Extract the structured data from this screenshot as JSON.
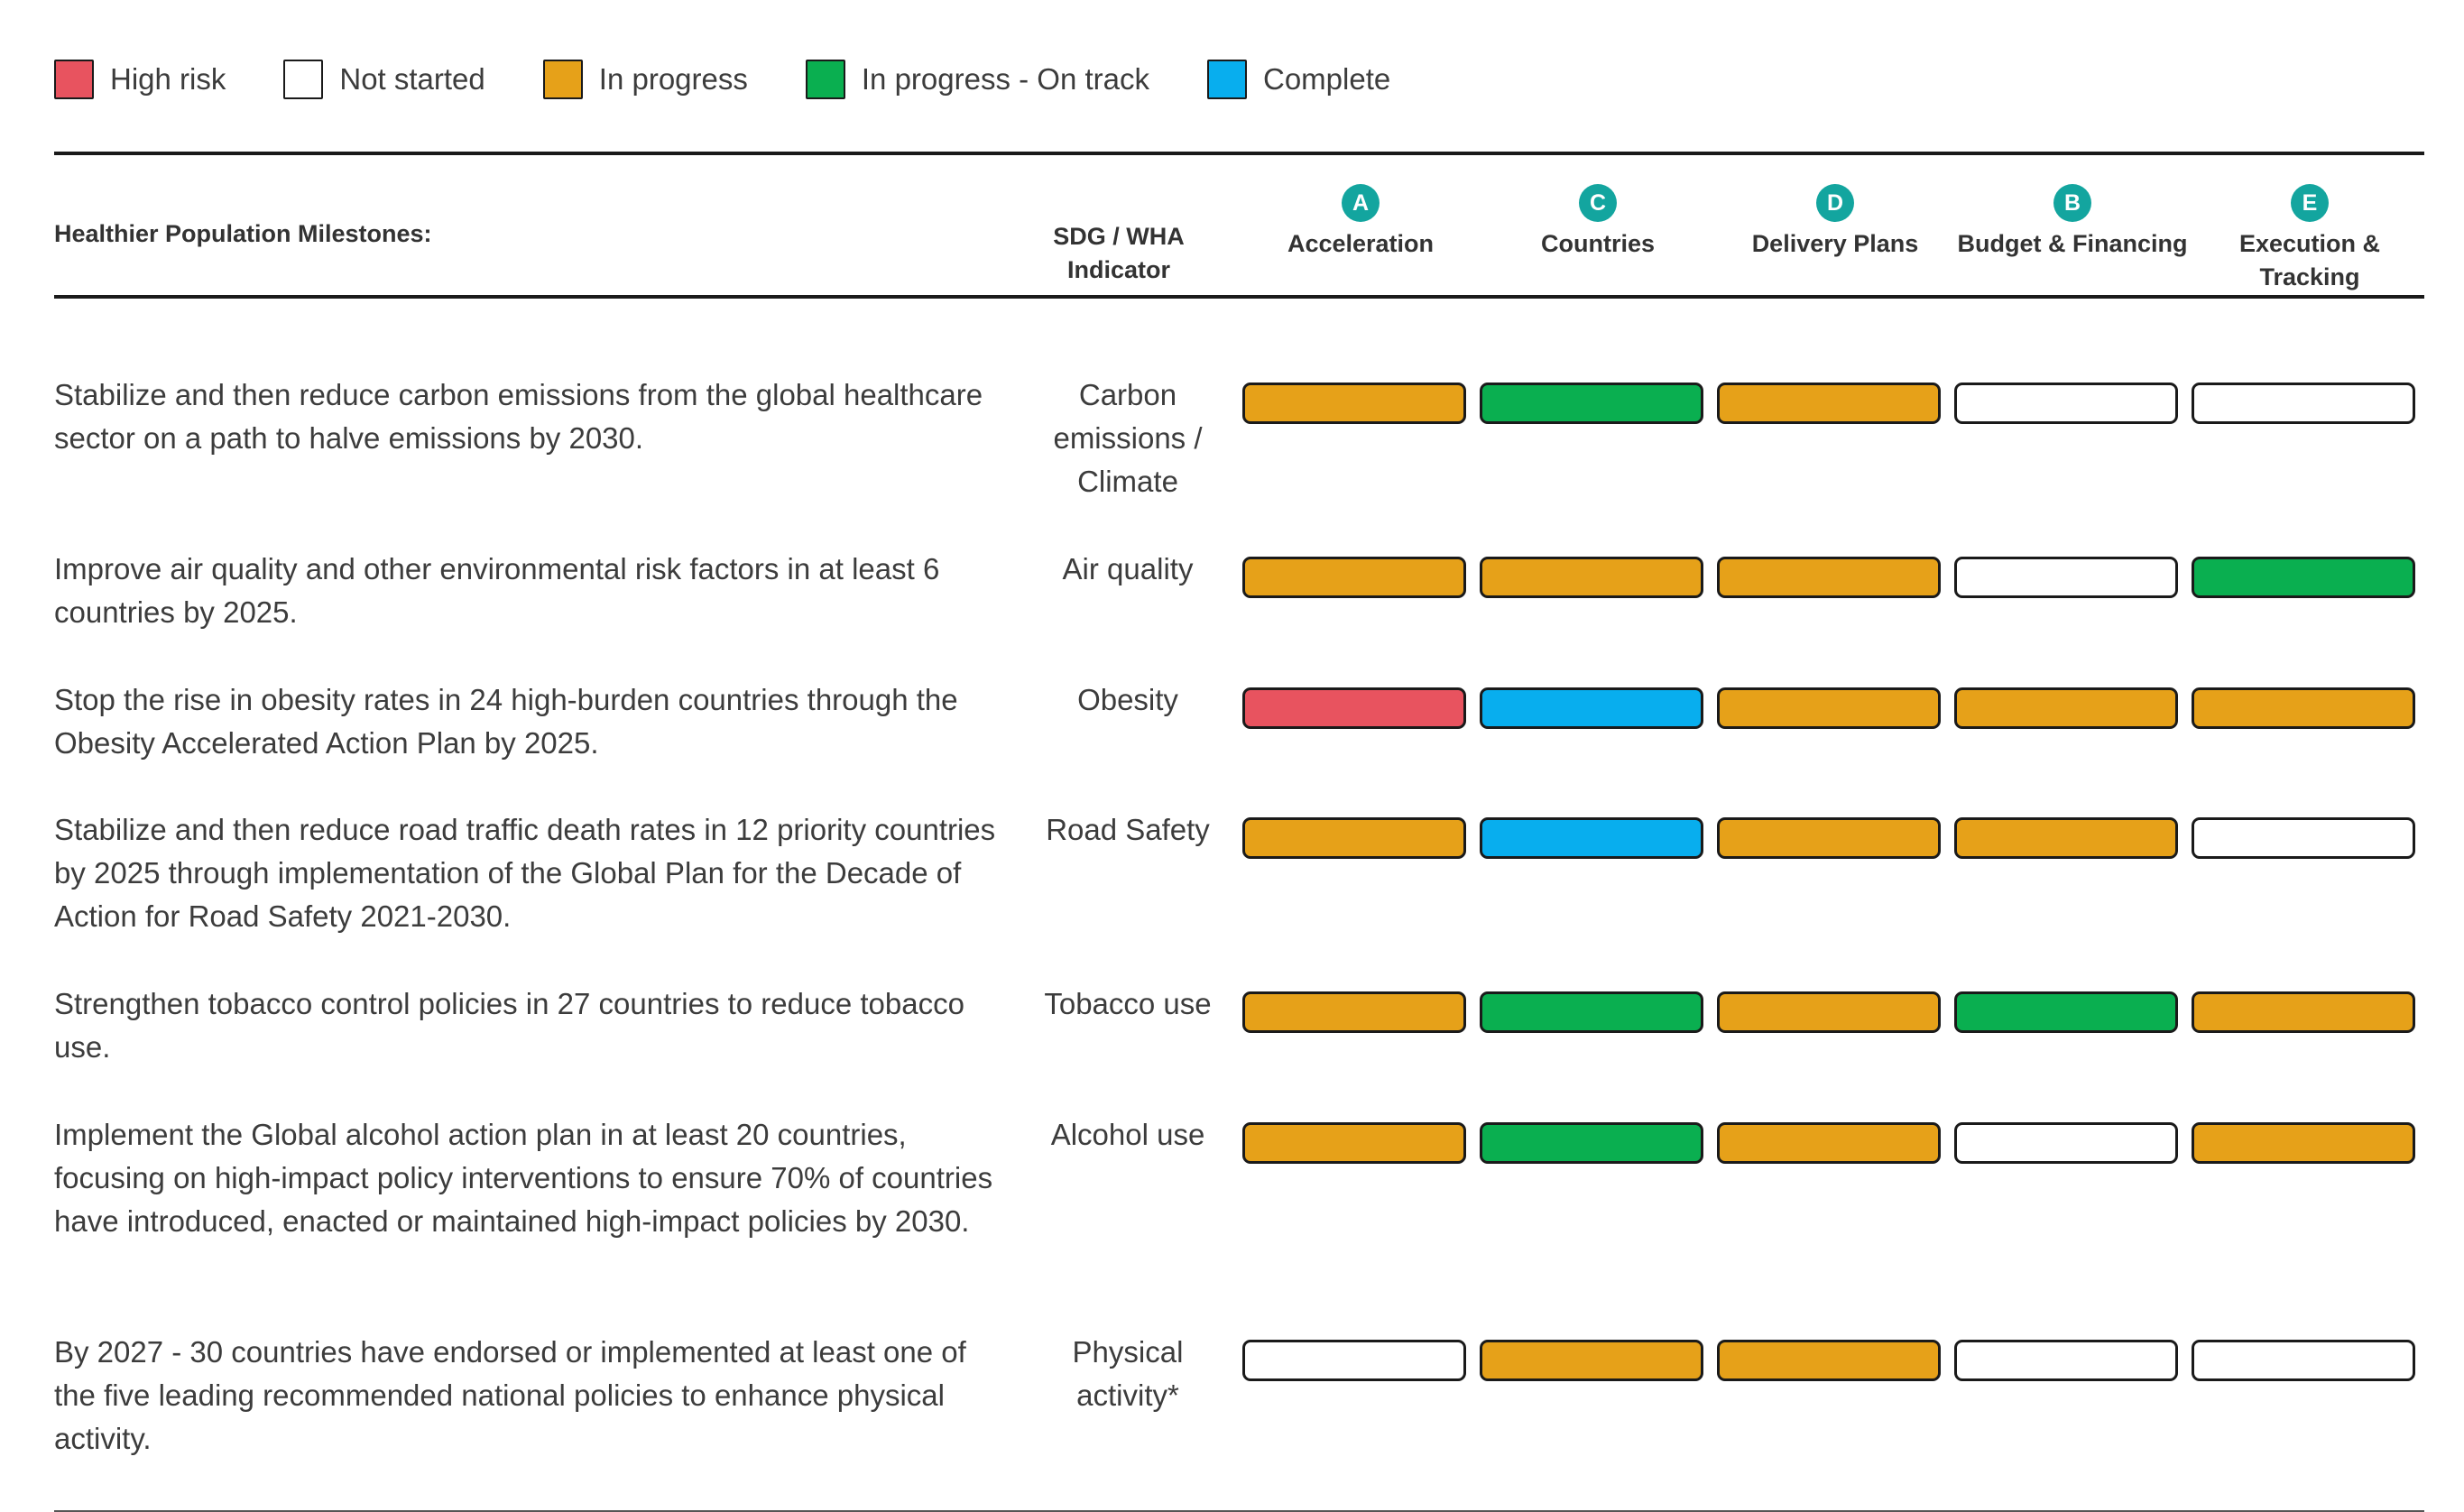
{
  "legend": [
    {
      "label": "High risk",
      "color": "#e8535f"
    },
    {
      "label": "Not started",
      "color": "#ffffff"
    },
    {
      "label": "In progress",
      "color": "#e6a119"
    },
    {
      "label": "In progress - On track",
      "color": "#0aaf50"
    },
    {
      "label": "Complete",
      "color": "#08aeee"
    }
  ],
  "header": {
    "milestones": "Healthier Population Milestones:",
    "indicator_line1": "SDG / WHA",
    "indicator_line2": "Indicator",
    "columns": [
      {
        "badge": "A",
        "label": "Acceleration",
        "label2": ""
      },
      {
        "badge": "C",
        "label": "Countries",
        "label2": ""
      },
      {
        "badge": "D",
        "label": "Delivery Plans",
        "label2": ""
      },
      {
        "badge": "B",
        "label": "Budget & Financing",
        "label2": ""
      },
      {
        "badge": "E",
        "label": "Execution &",
        "label2": "Tracking"
      }
    ]
  },
  "rows": [
    {
      "milestone": "Stabilize and then reduce carbon emissions from the global healthcare sector on a path to halve emissions by 2030.",
      "indicator": "Carbon emissions / Climate",
      "statuses": [
        "in_progress",
        "on_track",
        "in_progress",
        "not_started",
        "not_started"
      ]
    },
    {
      "milestone": "Improve air quality and other environmental risk factors in at least 6 countries by 2025.",
      "indicator": "Air quality",
      "statuses": [
        "in_progress",
        "in_progress",
        "in_progress",
        "not_started",
        "on_track"
      ]
    },
    {
      "milestone": "Stop the rise in obesity rates in 24 high-burden countries through the Obesity Accelerated Action Plan by 2025.",
      "indicator": "Obesity",
      "statuses": [
        "high_risk",
        "complete",
        "in_progress",
        "in_progress",
        "in_progress"
      ]
    },
    {
      "milestone": "Stabilize and then reduce road traffic death rates in 12 priority countries by 2025 through implementation of the Global Plan for the Decade of Action for Road Safety 2021-2030.",
      "indicator": "Road Safety",
      "statuses": [
        "in_progress",
        "complete",
        "in_progress",
        "in_progress",
        "not_started"
      ]
    },
    {
      "milestone": "Strengthen tobacco control policies in 27 countries to reduce tobacco use.",
      "indicator": "Tobacco use",
      "statuses": [
        "in_progress",
        "on_track",
        "in_progress",
        "on_track",
        "in_progress"
      ]
    },
    {
      "milestone": "Implement the Global alcohol action plan in at least 20 countries, focusing on high-impact policy interventions to ensure 70% of countries have introduced, enacted or maintained high-impact policies by 2030.",
      "indicator": "Alcohol use",
      "statuses": [
        "in_progress",
        "on_track",
        "in_progress",
        "not_started",
        "in_progress"
      ]
    },
    {
      "milestone": "By 2027 - 30 countries have endorsed or implemented at least one of the five leading recommended national policies to enhance physical activity.",
      "indicator": "Physical activity*",
      "statuses": [
        "not_started",
        "in_progress",
        "in_progress",
        "not_started",
        "not_started"
      ]
    }
  ]
}
